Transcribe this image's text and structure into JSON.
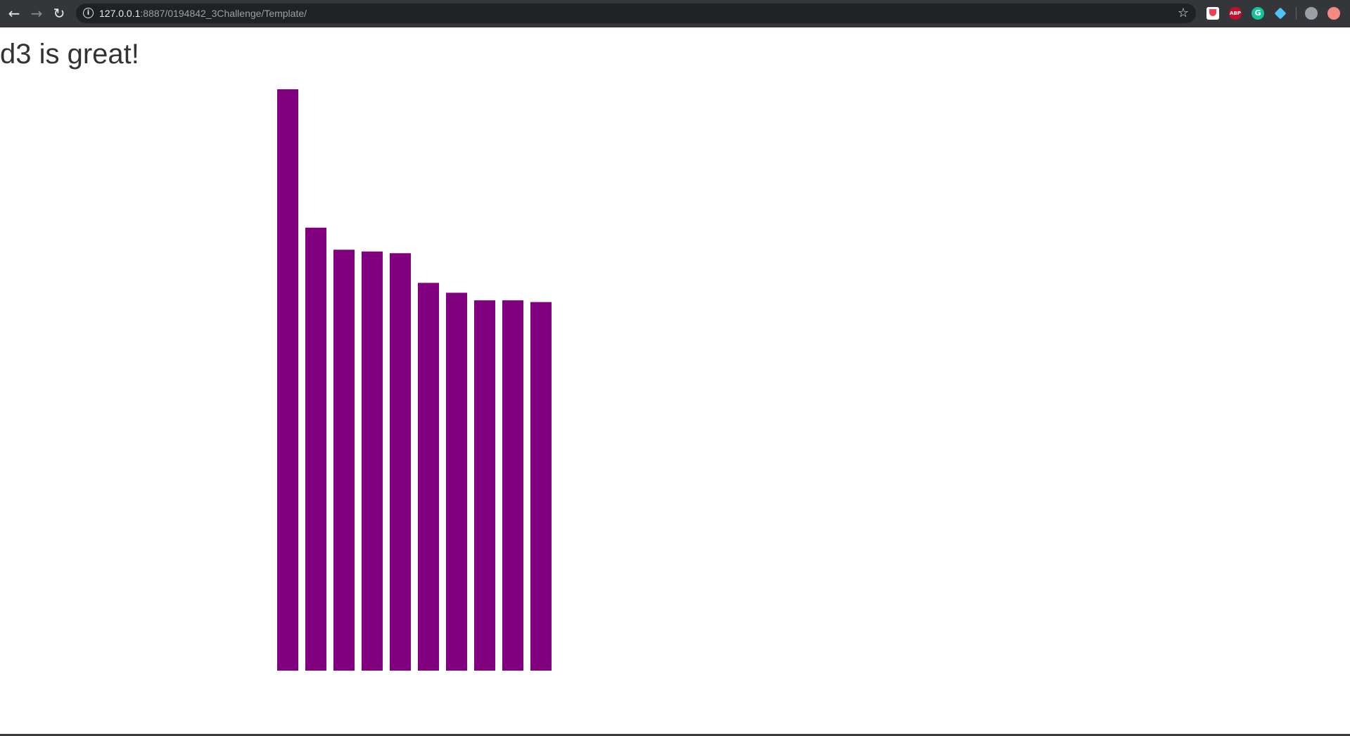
{
  "browser": {
    "url_host": "127.0.0.1",
    "url_path": ":8887/0194842_3Challenge/Template/",
    "icons": {
      "back": "arrow-left-icon",
      "forward": "arrow-right-icon",
      "reload": "reload-icon",
      "info": "info-icon",
      "bookmark": "star-icon"
    },
    "extensions": [
      "pocket-icon",
      "adblock-plus-icon",
      "grammarly-icon",
      "diamond-extension-icon",
      "profile-icon",
      "extension-icon"
    ],
    "ext_labels": {
      "abp": "ABP",
      "grammarly": "G"
    }
  },
  "page": {
    "title": "d3 is great!"
  },
  "chart_data": {
    "type": "bar",
    "color": "#800080",
    "values": [
      100,
      76.2,
      72.4,
      72.1,
      71.8,
      66.7,
      65,
      63.7,
      63.7,
      63.4
    ],
    "ylim": [
      0,
      100
    ],
    "grid": false,
    "axes": false,
    "legend": false
  }
}
